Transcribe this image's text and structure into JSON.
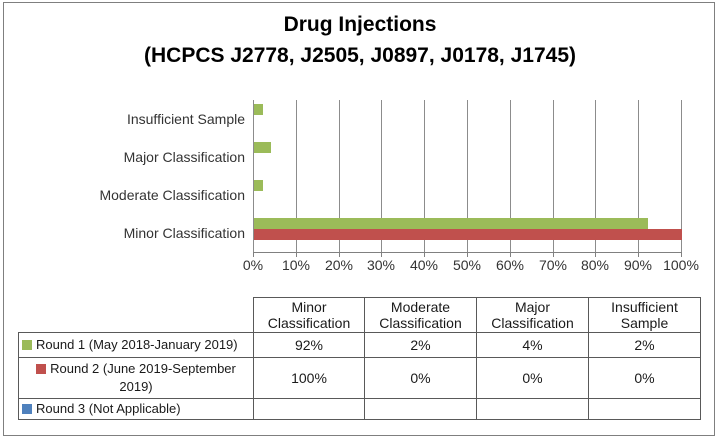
{
  "title": "Drug Injections",
  "subtitle": "(HCPCS J2778, J2505, J0897, J0178, J1745)",
  "colors": {
    "round1": "#9BBB59",
    "round2": "#C0504D",
    "round3": "#4F81BD",
    "gridline": "#8C8C8C",
    "axis": "#808080",
    "table_border": "#595959"
  },
  "chart_data": {
    "type": "bar",
    "orientation": "horizontal",
    "title": "Drug Injections (HCPCS J2778, J2505, J0897, J0178, J1745)",
    "categories": [
      "Minor Classification",
      "Moderate Classification",
      "Major Classification",
      "Insufficient Sample"
    ],
    "category_axis_top_to_bottom": [
      "Insufficient Sample",
      "Major Classification",
      "Moderate Classification",
      "Minor Classification"
    ],
    "series": [
      {
        "name": "Round 1 (May 2018-January 2019)",
        "color": "#9BBB59",
        "values": [
          92,
          2,
          4,
          2
        ],
        "labels": [
          "92%",
          "2%",
          "4%",
          "2%"
        ]
      },
      {
        "name": "Round 2 (June 2019-September 2019)",
        "color": "#C0504D",
        "values": [
          100,
          0,
          0,
          0
        ],
        "labels": [
          "100%",
          "0%",
          "0%",
          "0%"
        ]
      },
      {
        "name": "Round 3 (Not Applicable)",
        "color": "#4F81BD",
        "values": [
          null,
          null,
          null,
          null
        ],
        "labels": [
          "",
          "",
          "",
          ""
        ]
      }
    ],
    "xlim": [
      0,
      100
    ],
    "x_ticks": [
      "0%",
      "10%",
      "20%",
      "30%",
      "40%",
      "50%",
      "60%",
      "70%",
      "80%",
      "90%",
      "100%"
    ],
    "grid": true,
    "legend_position": "data-table-left"
  }
}
